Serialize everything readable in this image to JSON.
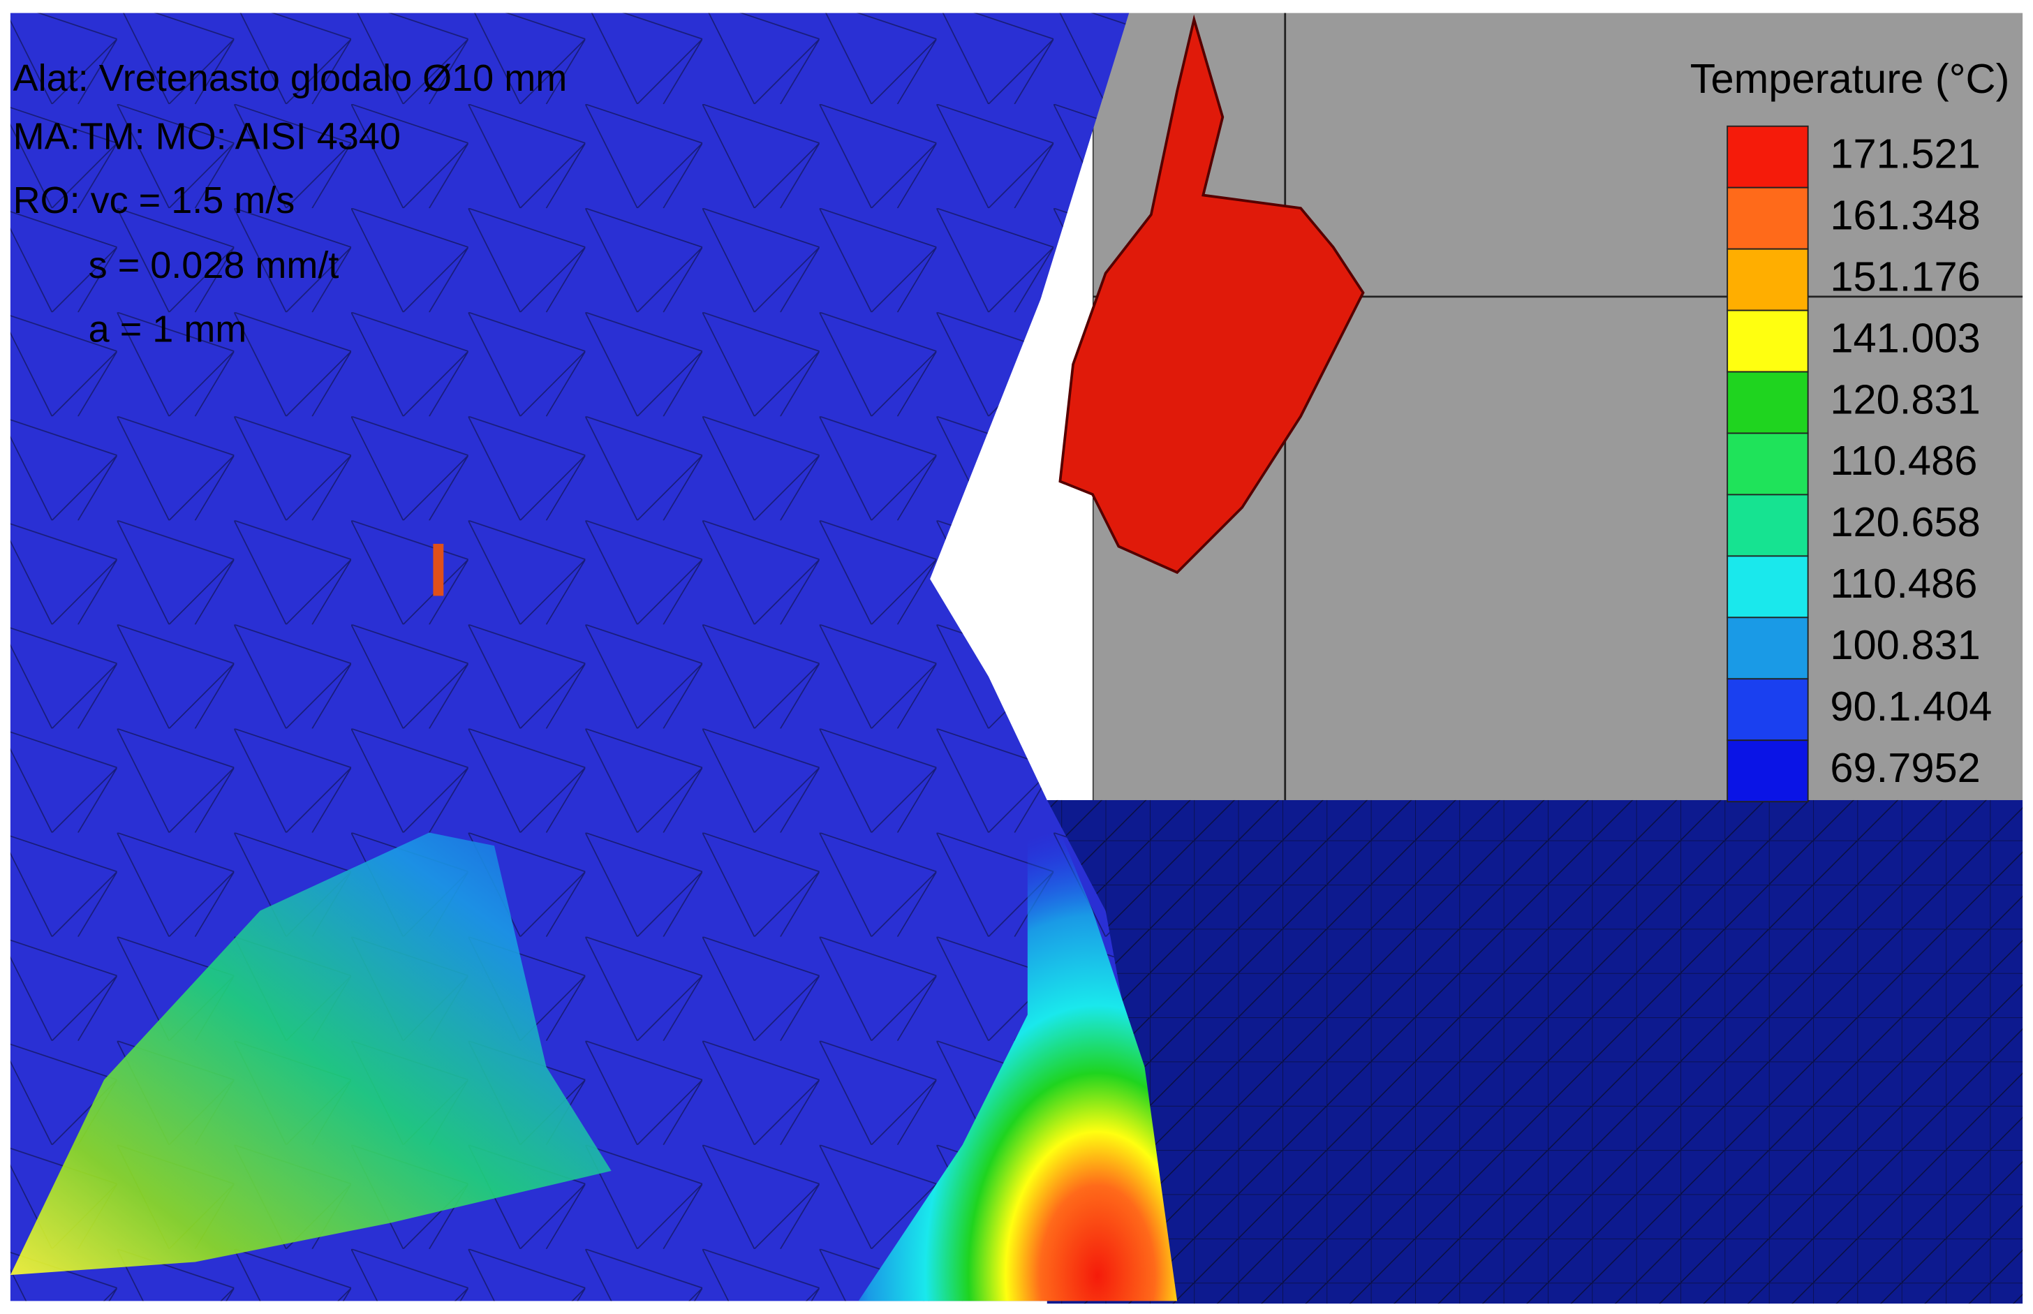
{
  "annotations": [
    "Alat: Vretenasto glodalo Ø10 mm",
    "MA:TM: MO: AISI 4340",
    "RO: vc = 1.5 m/s",
    "s = 0.028 mm/t",
    "a = 1 mm"
  ],
  "legend": {
    "title": "Temperature (°C)",
    "items": [
      {
        "label": "171.521",
        "color": "#f51b0a"
      },
      {
        "label": "161.348",
        "color": "#ff6a1a"
      },
      {
        "label": "151.176",
        "color": "#ffae00"
      },
      {
        "label": "141.003",
        "color": "#ffff10"
      },
      {
        "label": "120.831",
        "color": "#1fd41f"
      },
      {
        "label": "110.486",
        "color": "#1fe35a"
      },
      {
        "label": "120.658",
        "color": "#16e391"
      },
      {
        "label": "110.486",
        "color": "#1ae8ec"
      },
      {
        "label": "100.831",
        "color": "#1a9ae6"
      },
      {
        "label": "90.1.404",
        "color": "#1a40f0"
      },
      {
        "label": "69.7952",
        "color": "#0a14e6"
      }
    ]
  }
}
